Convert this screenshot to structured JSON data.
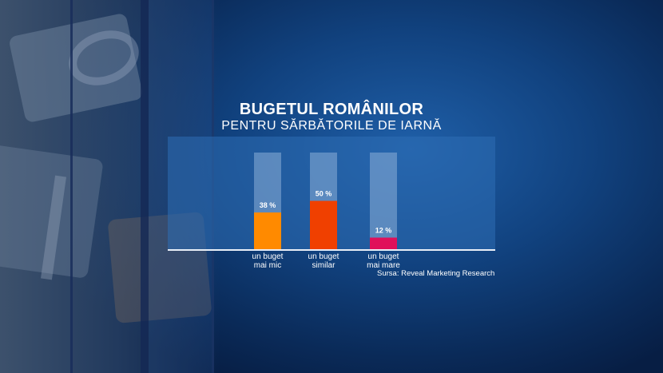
{
  "title": "BUGETUL ROMÂNILOR",
  "subtitle": "PENTRU SĂRBĂTORILE DE IARNĂ",
  "source": "Sursa: Reveal Marketing Research",
  "chart_data": {
    "type": "bar",
    "categories": [
      "un buget\nmai mic",
      "un buget\nsimilar",
      "un buget\nmai mare"
    ],
    "category_lines": [
      [
        "un buget",
        "mai mic"
      ],
      [
        "un buget",
        "similar"
      ],
      [
        "un buget",
        "mai mare"
      ]
    ],
    "values": [
      38,
      50,
      12
    ],
    "value_labels": [
      "38 %",
      "50 %",
      "12 %"
    ],
    "colors": [
      "#ff8a00",
      "#f04000",
      "#e0105a"
    ],
    "ylim": [
      0,
      100
    ],
    "grid": false
  }
}
